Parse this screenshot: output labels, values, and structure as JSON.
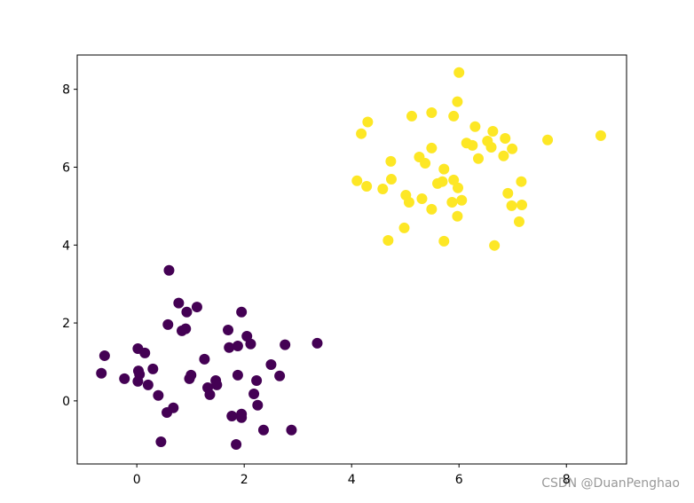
{
  "chart_data": {
    "type": "scatter",
    "xlim": [
      -1.11,
      9.12
    ],
    "ylim": [
      -1.62,
      8.88
    ],
    "xticks": [
      0,
      2,
      4,
      6,
      8
    ],
    "yticks": [
      0,
      2,
      4,
      6,
      8
    ],
    "grid": false,
    "series": [
      {
        "color": "#440154",
        "x": [
          0.6,
          0.78,
          1.12,
          0.93,
          1.95,
          0.58,
          0.91,
          0.84,
          1.7,
          -0.6,
          0.02,
          0.15,
          1.88,
          2.12,
          1.72,
          2.76,
          3.36,
          2.05,
          1.26,
          2.5,
          -0.66,
          -0.23,
          0.03,
          0.05,
          0.3,
          0.02,
          0.21,
          0.98,
          1.01,
          1.47,
          1.49,
          1.32,
          1.36,
          1.88,
          2.23,
          2.66,
          0.4,
          2.18,
          2.25,
          0.68,
          0.56,
          1.77,
          1.95,
          1.95,
          2.36,
          2.88,
          0.45,
          1.85
        ],
        "values": [
          3.35,
          2.51,
          2.41,
          2.28,
          2.28,
          1.96,
          1.85,
          1.8,
          1.82,
          1.16,
          1.34,
          1.23,
          1.41,
          1.46,
          1.37,
          1.44,
          1.48,
          1.66,
          1.07,
          0.93,
          0.71,
          0.57,
          0.77,
          0.68,
          0.82,
          0.5,
          0.41,
          0.57,
          0.66,
          0.52,
          0.41,
          0.34,
          0.16,
          0.66,
          0.52,
          0.64,
          0.14,
          0.18,
          -0.11,
          -0.18,
          -0.3,
          -0.39,
          -0.34,
          -0.43,
          -0.75,
          -0.75,
          -1.05,
          -1.12
        ]
      },
      {
        "color": "#fde725",
        "x": [
          6.0,
          5.97,
          4.3,
          4.18,
          5.12,
          5.49,
          5.9,
          6.3,
          6.63,
          6.53,
          6.86,
          7.65,
          8.64,
          6.14,
          6.25,
          6.6,
          6.99,
          5.49,
          5.26,
          5.37,
          6.36,
          6.83,
          4.73,
          5.72,
          4.1,
          4.28,
          4.74,
          4.58,
          5.6,
          5.69,
          5.9,
          5.98,
          7.16,
          5.01,
          5.07,
          5.31,
          5.87,
          6.05,
          6.91,
          6.98,
          7.17,
          5.49,
          5.97,
          7.12,
          4.98,
          4.68,
          5.72,
          6.66
        ],
        "values": [
          8.43,
          7.68,
          7.16,
          6.86,
          7.31,
          7.4,
          7.31,
          7.04,
          6.92,
          6.67,
          6.74,
          6.7,
          6.81,
          6.62,
          6.56,
          6.51,
          6.47,
          6.49,
          6.26,
          6.1,
          6.22,
          6.29,
          6.15,
          5.95,
          5.65,
          5.51,
          5.69,
          5.44,
          5.58,
          5.63,
          5.67,
          5.47,
          5.63,
          5.28,
          5.1,
          5.19,
          5.1,
          5.15,
          5.33,
          5.01,
          5.03,
          4.92,
          4.74,
          4.6,
          4.44,
          4.12,
          4.1,
          3.99
        ]
      }
    ]
  },
  "watermark": "CSDN @DuanPenghao"
}
